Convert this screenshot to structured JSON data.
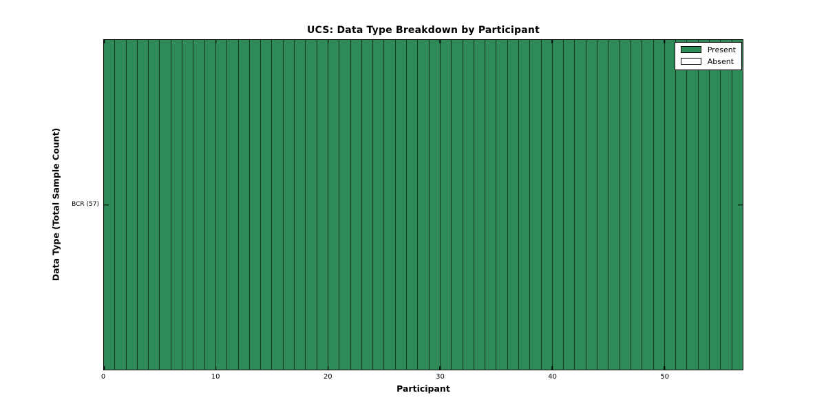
{
  "chart_data": {
    "type": "heatmap",
    "title": "UCS: Data Type Breakdown by Participant",
    "xlabel": "Participant",
    "ylabel": "Data Type (Total Sample Count)",
    "rows": [
      {
        "label": "BCR (57)",
        "total_sample_count": 57,
        "values": [
          1,
          1,
          1,
          1,
          1,
          1,
          1,
          1,
          1,
          1,
          1,
          1,
          1,
          1,
          1,
          1,
          1,
          1,
          1,
          1,
          1,
          1,
          1,
          1,
          1,
          1,
          1,
          1,
          1,
          1,
          1,
          1,
          1,
          1,
          1,
          1,
          1,
          1,
          1,
          1,
          1,
          1,
          1,
          1,
          1,
          1,
          1,
          1,
          1,
          1,
          1,
          1,
          1,
          1,
          1,
          1,
          1
        ]
      }
    ],
    "n_participants": 57,
    "xlim": [
      0,
      57
    ],
    "x_ticks": [
      0,
      10,
      20,
      30,
      40,
      50
    ],
    "grid": false,
    "legend": {
      "position": "upper right",
      "entries": [
        {
          "label": "Present",
          "value": 1,
          "color": "#2e8b57"
        },
        {
          "label": "Absent",
          "value": 0,
          "color": "#ffffff"
        }
      ]
    },
    "colors": {
      "present": "#2e8b57",
      "absent": "#ffffff",
      "edge": "#000000",
      "background": "#ffffff"
    }
  }
}
